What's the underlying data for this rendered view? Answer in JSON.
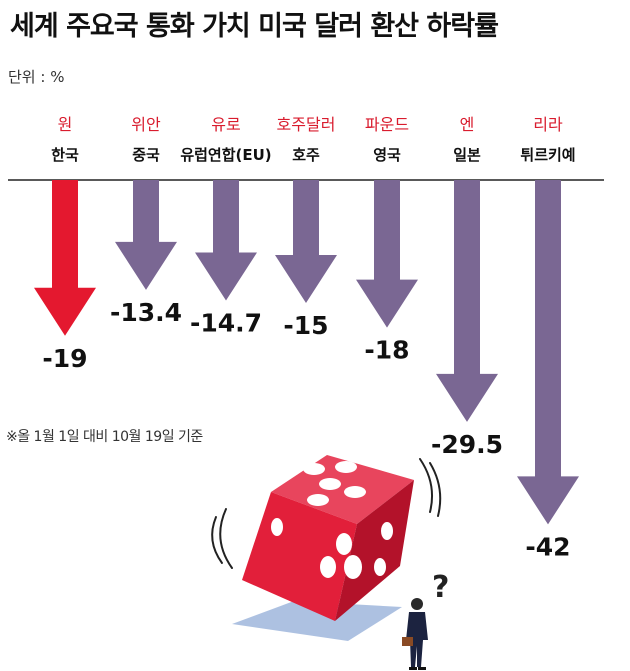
{
  "title": "세계 주요국 통화 가치 미국 달러 환산 하락률",
  "unit": "단위 : %",
  "footnote": "※올 1월 1일 대비 10월 19일 기준",
  "colors": {
    "highlight_arrow": "#e4182f",
    "highlight_text": "#d91c2e",
    "arrow": "#7a6793",
    "baseline": "#222222"
  },
  "chart_data": {
    "type": "bar",
    "title": "세계 주요국 통화 가치 미국 달러 환산 하락률",
    "unit": "%",
    "categories": [
      "한국",
      "중국",
      "유럽연합(EU)",
      "호주",
      "영국",
      "일본",
      "튀르키예"
    ],
    "currencies": [
      "원",
      "위안",
      "유로",
      "호주달러",
      "파운드",
      "엔",
      "리라"
    ],
    "values": [
      -19,
      -13.4,
      -14.7,
      -15,
      -18,
      -29.5,
      -42
    ],
    "value_labels": [
      "-19",
      "-13.4",
      "-14.7",
      "-15",
      "-18",
      "-29.5",
      "-42"
    ],
    "highlight_index": 0,
    "orientation": "downward arrows from a common baseline",
    "ylim": [
      -42,
      0
    ]
  }
}
